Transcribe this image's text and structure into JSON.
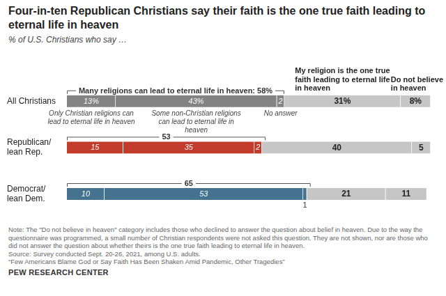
{
  "chart_data": {
    "type": "bar",
    "title": "Four-in-ten Republican Christians say their faith is the one true faith leading to eternal life in heaven",
    "subtitle": "% of U.S. Christians who say …",
    "categories": [
      "All Christians",
      "Republican/lean Rep.",
      "Democrat/lean Dem."
    ],
    "series": [
      {
        "name": "Only Christian religions can lead to eternal life in heaven",
        "colors": [
          "#838383",
          "#c33b2a",
          "#44728f"
        ],
        "values": [
          13,
          15,
          10
        ],
        "value_labels": [
          "13%",
          "15",
          "10"
        ]
      },
      {
        "name": "Some non-Christian religions can lead to eternal life in heaven",
        "colors": [
          "#838383",
          "#c33b2a",
          "#44728f"
        ],
        "values": [
          43,
          35,
          53
        ],
        "value_labels": [
          "43%",
          "35",
          "53"
        ]
      },
      {
        "name": "No answer",
        "colors": [
          "#838383",
          "#c33b2a",
          "#44728f"
        ],
        "values": [
          2,
          2,
          1
        ]
      },
      {
        "name": "My religion is the one true faith leading to eternal life in heaven",
        "colors": [
          "#c6c6c6",
          "#c6c6c6",
          "#c6c6c6"
        ],
        "values": [
          31,
          40,
          21
        ],
        "value_labels": [
          "31%",
          "40",
          "21"
        ]
      },
      {
        "name": "Do not believe in heaven",
        "colors": [
          "#c6c6c6",
          "#c6c6c6",
          "#c6c6c6"
        ],
        "values": [
          8,
          5,
          11
        ],
        "value_labels": [
          "8%",
          "5",
          "11"
        ]
      }
    ],
    "net": {
      "label": "Many religions can lead to eternal life in heaven:",
      "values": [
        58,
        53,
        65
      ],
      "value_labels": [
        "58%",
        "53",
        "65"
      ]
    },
    "orientation": "horizontal",
    "stacked": true,
    "data_labels": true,
    "tick_labels": "y",
    "grid": false,
    "xlim": [
      0,
      100
    ],
    "note": "Note: The \"Do not believe in heaven\" category includes those who declined to answer the question about belief in heaven. Due to the way the questionnaire was programmed, a small number of Christian respondents were not asked this question. They are not shown, nor are those who did not answer the question about whether theirs is the one true faith leading to eternal life in heaven.",
    "source": "Source: Survey conducted Sept. 20-26, 2021, among U.S. adults.",
    "caption": "“Few Americans Blame God or Say Faith Has Been Shaken Amid Pandemic, Other Tragedies”",
    "credit": "PEW RESEARCH CENTER"
  }
}
